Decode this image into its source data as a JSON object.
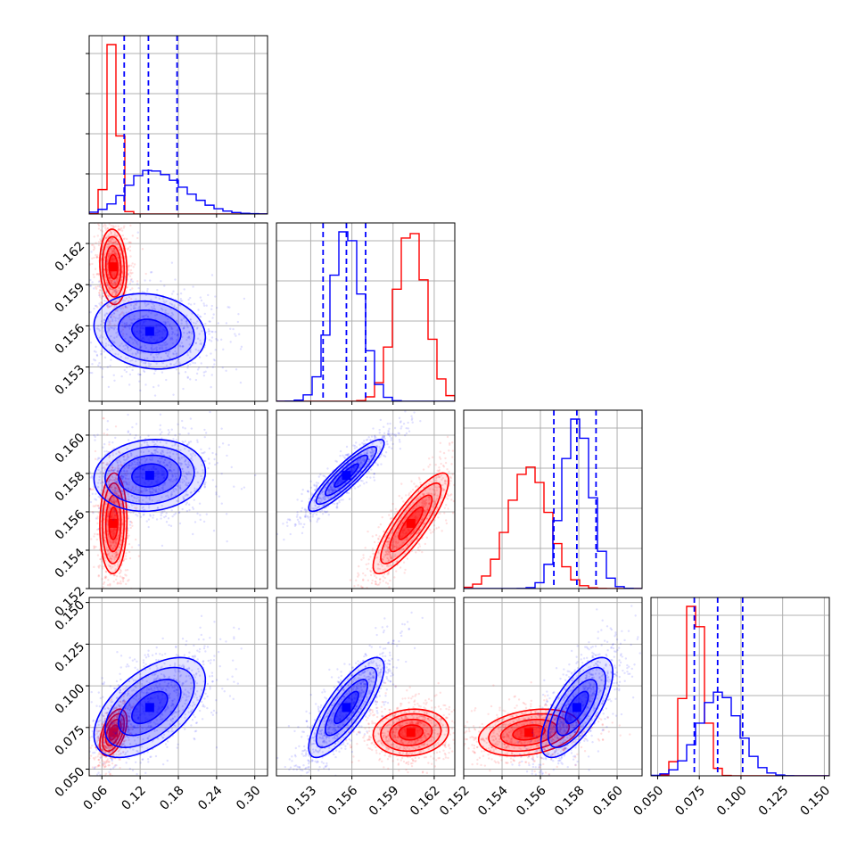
{
  "chart_data": {
    "type": "corner",
    "grid": true,
    "colors": {
      "red": "#ff0000",
      "blue": "#0000ff"
    },
    "parameters": [
      {
        "range": [
          0.04,
          0.32
        ],
        "ticks": [
          "0.06",
          "0.12",
          "0.18",
          "0.24",
          "0.30"
        ]
      },
      {
        "range": [
          0.1505,
          0.1635
        ],
        "ticks": [
          "0.153",
          "0.156",
          "0.159",
          "0.162"
        ]
      },
      {
        "range": [
          0.152,
          0.1613
        ],
        "ticks": [
          "0.152",
          "0.154",
          "0.156",
          "0.158",
          "0.160"
        ]
      },
      {
        "range": [
          0.046,
          0.153
        ],
        "ticks": [
          "0.050",
          "0.075",
          "0.100",
          "0.125",
          "0.150"
        ]
      }
    ],
    "series": [
      {
        "color": "red",
        "means": [
          0.078,
          0.1603,
          0.1554,
          0.072
        ],
        "stds": [
          0.0085,
          0.0011,
          0.00105,
          0.0056
        ],
        "correlations": [
          [
            0,
            1,
            -0.1
          ],
          [
            0,
            2,
            0.05
          ],
          [
            0,
            3,
            0.5
          ],
          [
            1,
            2,
            0.85
          ],
          [
            1,
            3,
            0.1
          ],
          [
            2,
            3,
            0.3
          ]
        ]
      },
      {
        "color": "blue",
        "means": [
          0.135,
          0.1556,
          0.1579,
          0.087
        ],
        "stds": [
          0.035,
          0.0011,
          0.00075,
          0.012
        ],
        "correlations": [
          [
            0,
            1,
            -0.15
          ],
          [
            0,
            2,
            0.1
          ],
          [
            0,
            3,
            0.55
          ],
          [
            1,
            2,
            0.9
          ],
          [
            1,
            3,
            0.8
          ],
          [
            2,
            3,
            0.7
          ]
        ]
      }
    ],
    "quantile_lines": {
      "color": "blue",
      "style": "dashed",
      "values": [
        [
          0.095,
          0.133,
          0.178
        ],
        [
          0.1539,
          0.1556,
          0.157
        ],
        [
          0.1567,
          0.1579,
          0.1589
        ],
        [
          0.072,
          0.086,
          0.101
        ]
      ]
    }
  }
}
